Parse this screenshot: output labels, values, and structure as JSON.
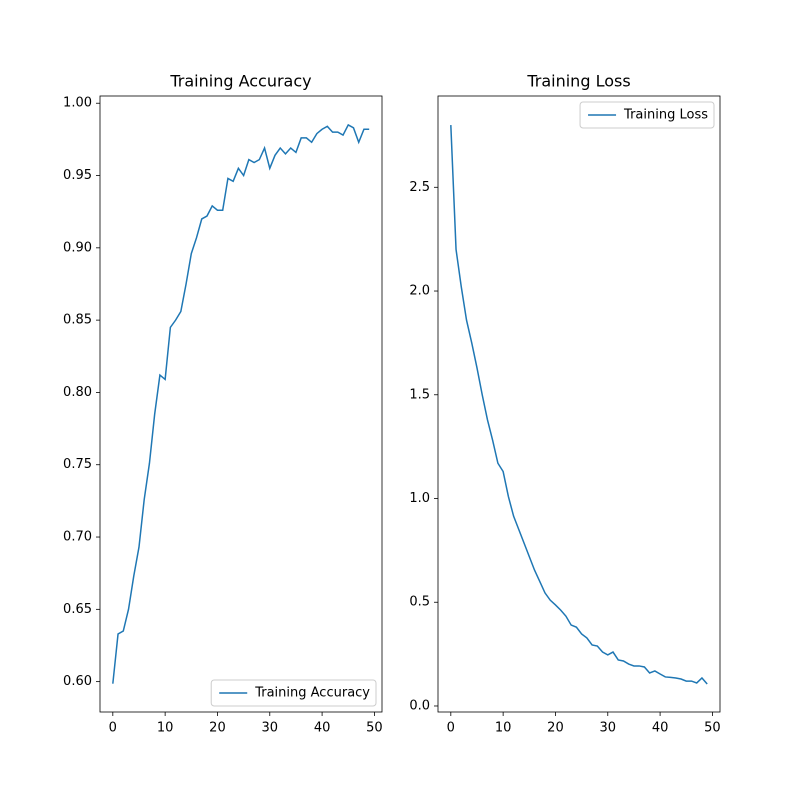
{
  "chart_data": [
    {
      "type": "line",
      "title": "Training Accuracy",
      "x": [
        0,
        1,
        2,
        3,
        4,
        5,
        6,
        7,
        8,
        9,
        10,
        11,
        12,
        13,
        14,
        15,
        16,
        17,
        18,
        19,
        20,
        21,
        22,
        23,
        24,
        25,
        26,
        27,
        28,
        29,
        30,
        31,
        32,
        33,
        34,
        35,
        36,
        37,
        38,
        39,
        40,
        41,
        42,
        43,
        44,
        45,
        46,
        47,
        48,
        49
      ],
      "series": [
        {
          "name": "Training Accuracy",
          "color": "#1f77b4",
          "values": [
            0.5986,
            0.633,
            0.635,
            0.65,
            0.673,
            0.693,
            0.726,
            0.751,
            0.785,
            0.812,
            0.809,
            0.845,
            0.85,
            0.856,
            0.875,
            0.896,
            0.907,
            0.92,
            0.922,
            0.929,
            0.926,
            0.926,
            0.948,
            0.946,
            0.955,
            0.95,
            0.961,
            0.959,
            0.961,
            0.969,
            0.955,
            0.964,
            0.969,
            0.965,
            0.969,
            0.966,
            0.976,
            0.976,
            0.973,
            0.979,
            0.982,
            0.984,
            0.98,
            0.98,
            0.978,
            0.985,
            0.983,
            0.973,
            0.982,
            0.982
          ]
        }
      ],
      "xlim": [
        -2.45,
        51.45
      ],
      "ylim": [
        0.579,
        1.005
      ],
      "xticks": [
        0,
        10,
        20,
        30,
        40,
        50
      ],
      "yticks": [
        {
          "value": 0.6,
          "label": "0.60"
        },
        0.65,
        {
          "value": 0.7,
          "label": "0.70"
        },
        0.75,
        {
          "value": 0.8,
          "label": "0.80"
        },
        0.85,
        {
          "value": 0.9,
          "label": "0.90"
        },
        0.95,
        {
          "value": 1.0,
          "label": "1.00"
        }
      ],
      "legend": "lower right"
    },
    {
      "type": "line",
      "title": "Training Loss",
      "x": [
        0,
        1,
        2,
        3,
        4,
        5,
        6,
        7,
        8,
        9,
        10,
        11,
        12,
        13,
        14,
        15,
        16,
        17,
        18,
        19,
        20,
        21,
        22,
        23,
        24,
        25,
        26,
        27,
        28,
        29,
        30,
        31,
        32,
        33,
        34,
        35,
        36,
        37,
        38,
        39,
        40,
        41,
        42,
        43,
        44,
        45,
        46,
        47,
        48,
        49
      ],
      "series": [
        {
          "name": "Training Loss",
          "color": "#1f77b4",
          "values": [
            2.8,
            2.2,
            2.02,
            1.86,
            1.75,
            1.63,
            1.5,
            1.38,
            1.28,
            1.17,
            1.13,
            1.01,
            0.915,
            0.85,
            0.785,
            0.72,
            0.655,
            0.6,
            0.545,
            0.51,
            0.487,
            0.462,
            0.433,
            0.39,
            0.38,
            0.347,
            0.328,
            0.294,
            0.289,
            0.26,
            0.246,
            0.26,
            0.222,
            0.217,
            0.202,
            0.193,
            0.193,
            0.188,
            0.159,
            0.169,
            0.154,
            0.14,
            0.138,
            0.135,
            0.13,
            0.12,
            0.12,
            0.111,
            0.135,
            0.106
          ]
        }
      ],
      "xlim": [
        -2.45,
        51.45
      ],
      "ylim": [
        -0.029,
        2.94
      ],
      "xticks": [
        0,
        10,
        20,
        30,
        40,
        50
      ],
      "yticks": [
        {
          "value": 0,
          "label": "0.0"
        },
        0.5,
        {
          "value": 1,
          "label": "1.0"
        },
        1.5,
        {
          "value": 2,
          "label": "2.0"
        },
        2.5
      ],
      "legend": "upper right"
    }
  ]
}
